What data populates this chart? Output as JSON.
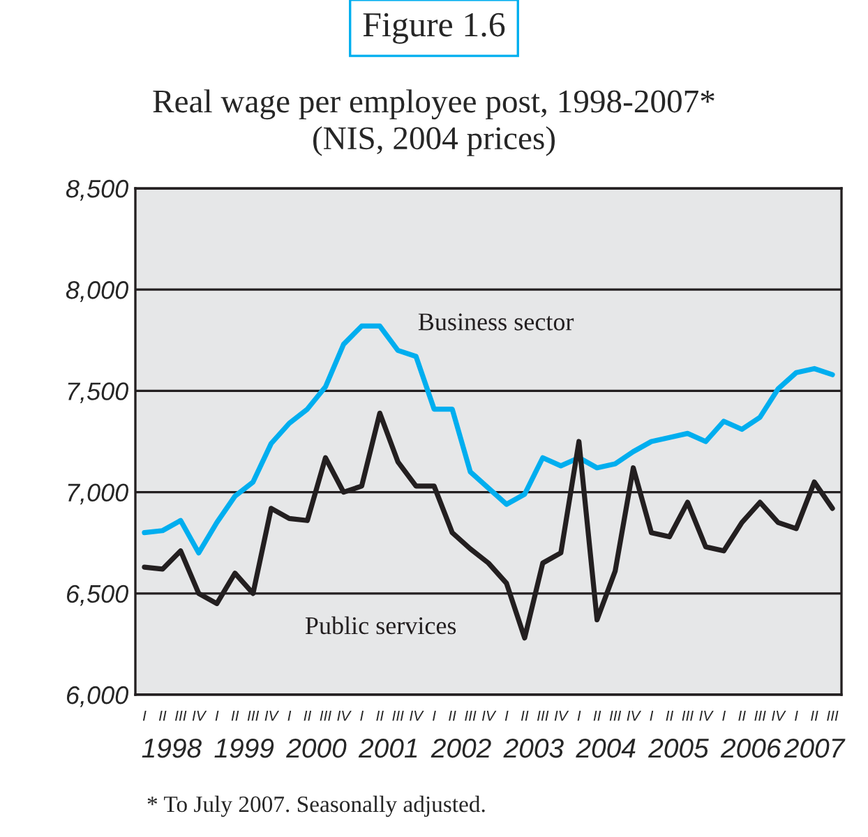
{
  "chart_data": {
    "type": "line",
    "title": "Figure 1.6",
    "subtitle": "Real wage per employee post, 1998-2007*\n(NIS, 2004 prices)",
    "categories": [
      "I",
      "II",
      "III",
      "IV",
      "I",
      "II",
      "III",
      "IV",
      "I",
      "II",
      "III",
      "IV",
      "I",
      "II",
      "III",
      "IV",
      "I",
      "II",
      "III",
      "IV",
      "I",
      "II",
      "III",
      "IV",
      "I",
      "II",
      "III",
      "IV",
      "I",
      "II",
      "III",
      "IV",
      "I",
      "II",
      "III",
      "IV",
      "I",
      "II",
      "III"
    ],
    "series": [
      {
        "name": "Business sector",
        "color": "#00aeef",
        "values": [
          6800,
          6810,
          6860,
          6700,
          6850,
          6980,
          7050,
          7240,
          7340,
          7410,
          7520,
          7730,
          7820,
          7820,
          7700,
          7670,
          7410,
          7410,
          7100,
          7020,
          6940,
          6990,
          7170,
          7130,
          7170,
          7120,
          7140,
          7200,
          7250,
          7270,
          7290,
          7250,
          7350,
          7310,
          7370,
          7510,
          7590,
          7610,
          7580
        ]
      },
      {
        "name": "Public services",
        "color": "#231f20",
        "values": [
          6630,
          6620,
          6710,
          6500,
          6450,
          6600,
          6500,
          6920,
          6870,
          6860,
          7170,
          7000,
          7030,
          7390,
          7150,
          7030,
          7030,
          6800,
          6720,
          6650,
          6550,
          6280,
          6650,
          6700,
          7250,
          6370,
          6610,
          7120,
          6800,
          6780,
          6950,
          6730,
          6710,
          6850,
          6950,
          6850,
          6820,
          7050,
          6920
        ]
      }
    ],
    "ylim": [
      6000,
      8500
    ],
    "yticks": [
      {
        "value": 6000,
        "label": "6,000"
      },
      {
        "value": 6500,
        "label": "6,500"
      },
      {
        "value": 7000,
        "label": "7,000"
      },
      {
        "value": 7500,
        "label": "7,500"
      },
      {
        "value": 8000,
        "label": "8,000"
      },
      {
        "value": 8500,
        "label": "8,500"
      }
    ],
    "grid": "y",
    "legend": false,
    "marker": "none",
    "line_style": "solid",
    "annotations": [
      "1998",
      "1999",
      "2000",
      "2001",
      "2002",
      "2003",
      "2004",
      "2005",
      "2006",
      "2007",
      "* To July 2007. Seasonally adjusted."
    ]
  }
}
